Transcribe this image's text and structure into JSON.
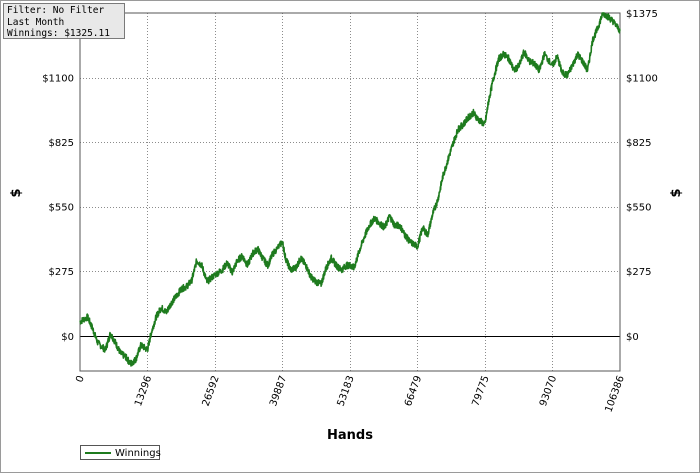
{
  "info": {
    "filter": "Filter: No Filter",
    "period": "Last Month",
    "winnings": "Winnings: $1325.11"
  },
  "colors": {
    "series": "#1e7b1e",
    "grid": "#8c8c8c",
    "zero_line": "#000000"
  },
  "chart_data": {
    "type": "line",
    "xlabel": "Hands",
    "ylabel": "$",
    "ylabel_right": "$",
    "xlim": [
      0,
      106386
    ],
    "ylim": [
      -150,
      1375
    ],
    "x_ticks": [
      0,
      13296,
      26592,
      39887,
      53183,
      66479,
      79775,
      93070,
      106386
    ],
    "x_tick_labels": [
      "0",
      "13296",
      "26592",
      "39887",
      "53183",
      "66479",
      "79775",
      "93070",
      "106386"
    ],
    "y_ticks": [
      0,
      275,
      550,
      825,
      1100,
      1375
    ],
    "y_tick_labels": [
      "$0",
      "$275",
      "$550",
      "$825",
      "$1100",
      "$1375"
    ],
    "grid": true,
    "legend_position": "bottom-left",
    "series": [
      {
        "name": "Winnings",
        "x": [
          0,
          1500,
          2500,
          3500,
          5000,
          6000,
          7000,
          8000,
          9000,
          10000,
          11000,
          12000,
          13296,
          14000,
          15000,
          16000,
          17000,
          18000,
          19000,
          20000,
          21000,
          22000,
          23000,
          24000,
          25000,
          26592,
          28000,
          29000,
          30000,
          31000,
          32000,
          33000,
          34000,
          35000,
          36000,
          37000,
          38000,
          39887,
          40500,
          41500,
          42500,
          43500,
          44500,
          45500,
          46500,
          47500,
          48500,
          49500,
          50500,
          51500,
          52500,
          53183,
          54000,
          55000,
          56000,
          57000,
          58000,
          59000,
          60000,
          61000,
          62000,
          63000,
          64000,
          65000,
          66479,
          67500,
          68500,
          69500,
          70500,
          71500,
          72500,
          73500,
          74500,
          75500,
          76500,
          77500,
          78500,
          79775,
          80500,
          81500,
          82500,
          83500,
          84500,
          85500,
          86500,
          87500,
          88500,
          89500,
          90500,
          91500,
          93070,
          94000,
          95000,
          96000,
          97000,
          98000,
          99000,
          100000,
          101000,
          102000,
          103000,
          104000,
          105000,
          106386
        ],
        "y": [
          60,
          80,
          30,
          -30,
          -60,
          10,
          -30,
          -75,
          -90,
          -120,
          -100,
          -40,
          -60,
          10,
          80,
          120,
          100,
          140,
          170,
          200,
          210,
          235,
          320,
          300,
          230,
          260,
          280,
          310,
          270,
          320,
          340,
          300,
          350,
          370,
          330,
          300,
          350,
          400,
          330,
          280,
          290,
          330,
          300,
          250,
          230,
          220,
          290,
          330,
          300,
          280,
          300,
          300,
          290,
          360,
          420,
          470,
          500,
          480,
          460,
          510,
          470,
          470,
          430,
          400,
          380,
          460,
          430,
          520,
          580,
          680,
          750,
          820,
          880,
          900,
          930,
          950,
          920,
          900,
          1000,
          1100,
          1180,
          1200,
          1180,
          1130,
          1150,
          1210,
          1170,
          1160,
          1130,
          1200,
          1150,
          1190,
          1120,
          1110,
          1150,
          1200,
          1170,
          1130,
          1260,
          1310,
          1375,
          1360,
          1340,
          1300
        ]
      }
    ]
  }
}
